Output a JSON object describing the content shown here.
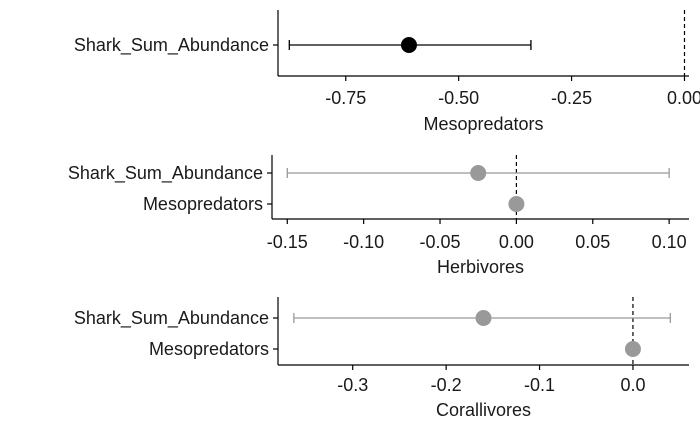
{
  "chart_data": [
    {
      "type": "dot-whisker",
      "xlabel": "Mesopredators",
      "xlim": [
        -0.9,
        0.01
      ],
      "ticks": [
        -0.75,
        -0.5,
        -0.25,
        0.0
      ],
      "tick_labels": [
        "-0.75",
        "-0.50",
        "-0.25",
        "0.00"
      ],
      "reference_line": 0,
      "terms": [
        {
          "label": "Shark_Sum_Abundance",
          "estimate": -0.61,
          "low": -0.875,
          "high": -0.34,
          "color": "#000000"
        }
      ]
    },
    {
      "type": "dot-whisker",
      "xlabel": "Herbivores",
      "xlim": [
        -0.16,
        0.113
      ],
      "ticks": [
        -0.15,
        -0.1,
        -0.05,
        0.0,
        0.05,
        0.1
      ],
      "tick_labels": [
        "-0.15",
        "-0.10",
        "-0.05",
        "0.00",
        "0.05",
        "0.10"
      ],
      "reference_line": 0,
      "terms": [
        {
          "label": "Shark_Sum_Abundance",
          "estimate": -0.025,
          "low": -0.15,
          "high": 0.1,
          "color": "#999999"
        },
        {
          "label": "Mesopredators",
          "estimate": 0.0,
          "low": 0.0,
          "high": 0.0,
          "color": "#999999"
        }
      ]
    },
    {
      "type": "dot-whisker",
      "xlabel": "Corallivores",
      "xlim": [
        -0.38,
        0.06
      ],
      "ticks": [
        -0.3,
        -0.2,
        -0.1,
        0.0
      ],
      "tick_labels": [
        "-0.3",
        "-0.2",
        "-0.1",
        "0.0"
      ],
      "reference_line": 0,
      "terms": [
        {
          "label": "Shark_Sum_Abundance",
          "estimate": -0.16,
          "low": -0.363,
          "high": 0.04,
          "color": "#999999"
        },
        {
          "label": "Mesopredators",
          "estimate": 0.0,
          "low": 0.0,
          "high": 0.0,
          "color": "#999999"
        }
      ]
    }
  ]
}
